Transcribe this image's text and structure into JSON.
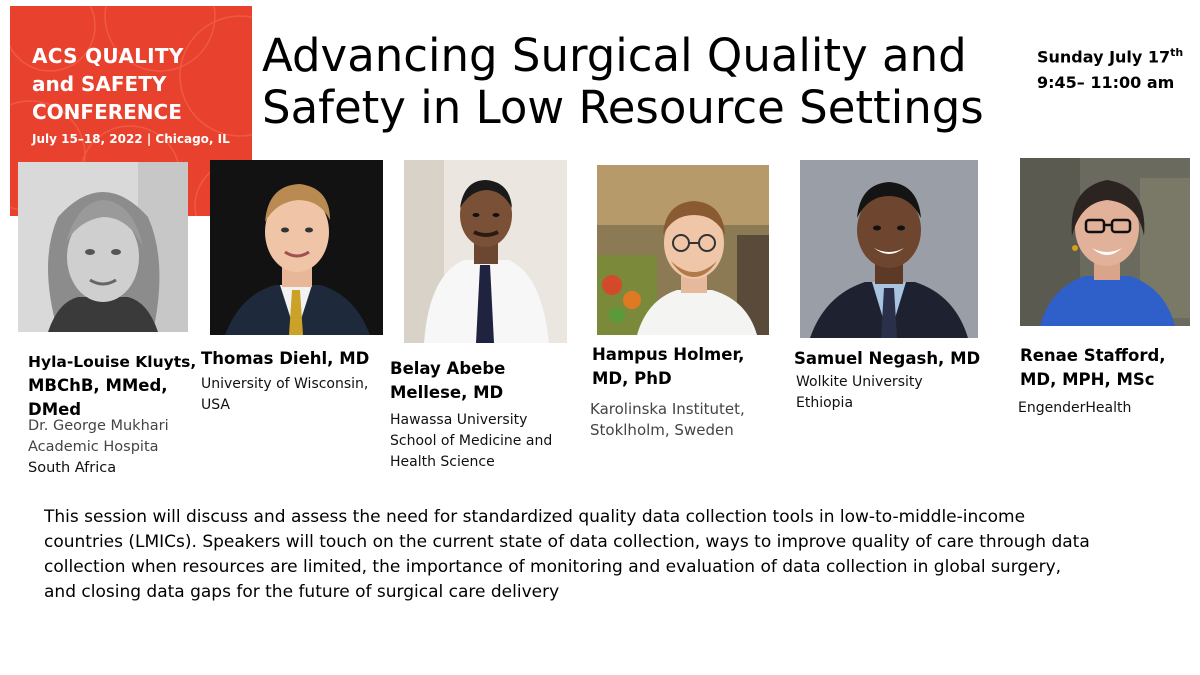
{
  "logo": {
    "line1": "ACS QUALITY",
    "line2": "and SAFETY",
    "line3": "CONFERENCE",
    "line4": "July 15–18, 2022 | Chicago, IL",
    "color": "#e8412d"
  },
  "title": {
    "line1": "Advancing Surgical Quality and",
    "line2": "Safety in Low Resource Settings"
  },
  "date": {
    "day": "Sunday July 17",
    "suffix": "th",
    "time": "9:45– 11:00 am"
  },
  "speakers": [
    {
      "name_lines": [
        "Hyla-Louise  Kluyts,",
        "MBChB, MMed,",
        "DMed"
      ],
      "affiliation_lines": [
        "Dr. George Mukhari",
        "Academic Hospita",
        "South Africa"
      ]
    },
    {
      "name_lines": [
        "Thomas Diehl, MD"
      ],
      "affiliation_lines": [
        "University of Wisconsin,",
        "USA"
      ]
    },
    {
      "name_lines": [
        "Belay Abebe",
        "Mellese, MD"
      ],
      "affiliation_lines": [
        "Hawassa University",
        "School of Medicine and",
        "Health Science"
      ]
    },
    {
      "name_lines": [
        "Hampus Holmer,",
        "MD, PhD"
      ],
      "affiliation_lines": [
        "Karolinska Institutet,",
        "Stoklholm, Sweden"
      ]
    },
    {
      "name_lines": [
        "Samuel Negash, MD"
      ],
      "affiliation_lines": [
        "Wolkite University",
        "Ethiopia"
      ]
    },
    {
      "name_lines": [
        "Renae Stafford,",
        "MD, MPH, MSc"
      ],
      "affiliation_lines": [
        "EngenderHealth"
      ]
    }
  ],
  "description": {
    "line1": "This session will discuss and assess the need for standardized quality data collection tools in low-to-middle-income",
    "line2": "countries (LMICs). Speakers will touch on the current state of data collection, ways to improve quality of care through data",
    "line3": "collection when resources are limited, the importance of monitoring and evaluation of data collection in global surgery,",
    "line4": "and closing data gaps for the future of surgical care delivery"
  }
}
